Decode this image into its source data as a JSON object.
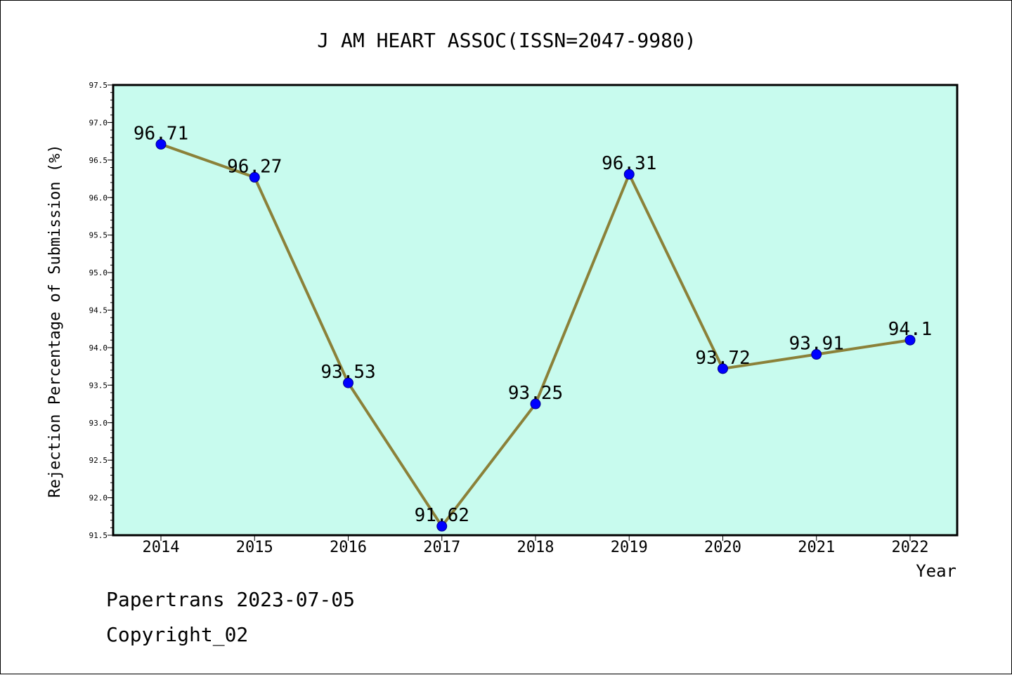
{
  "chart_data": {
    "type": "line",
    "title": "J AM HEART ASSOC(ISSN=2047-9980)",
    "xlabel": "Year",
    "ylabel": "Rejection Percentage of Submission (%)",
    "categories": [
      "2014",
      "2015",
      "2016",
      "2017",
      "2018",
      "2019",
      "2020",
      "2021",
      "2022"
    ],
    "series": [
      {
        "values": [
          96.71,
          96.27,
          93.53,
          91.62,
          93.25,
          96.31,
          93.72,
          93.91,
          94.1
        ],
        "labels": [
          "96.71",
          "96.27",
          "93.53",
          "91.62",
          "93.25",
          "96.31",
          "93.72",
          "93.91",
          "94.1"
        ]
      }
    ],
    "ylim": [
      91.5,
      97.5
    ],
    "yticks": [
      91.5,
      92.0,
      92.5,
      93.0,
      93.5,
      94.0,
      94.5,
      95.0,
      95.5,
      96.0,
      96.5,
      97.0,
      97.5
    ],
    "ytick_labels": [
      "91.5",
      "92.0",
      "92.5",
      "93.0",
      "93.5",
      "94.0",
      "94.5",
      "95.0",
      "95.5",
      "96.0",
      "96.5",
      "97.0",
      "97.5"
    ],
    "grid": false,
    "colors": {
      "plot_background": "#c8fbee",
      "line": "#8b8139",
      "marker": "#0000ff",
      "marker_edge": "#00008b"
    }
  },
  "footer": {
    "line1": "Papertrans 2023-07-05",
    "line2": "Copyright_02"
  }
}
